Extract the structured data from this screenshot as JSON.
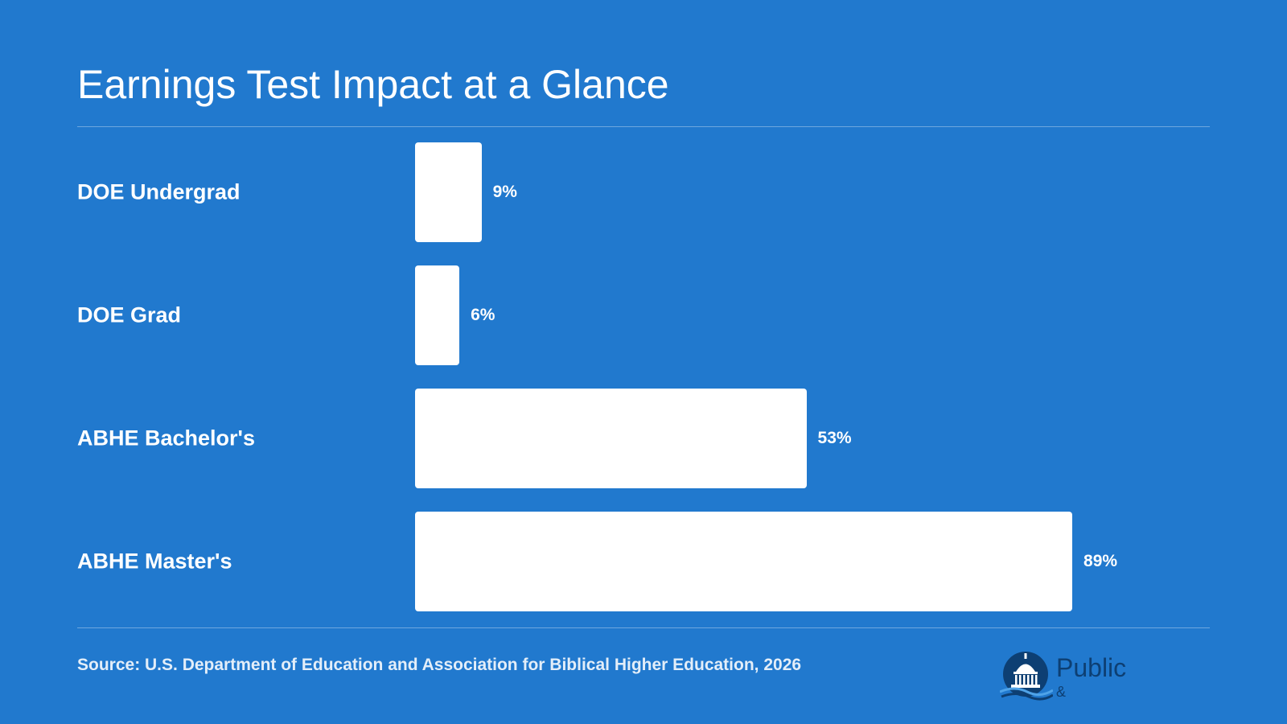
{
  "chart_data": {
    "type": "bar",
    "orientation": "horizontal",
    "title": "Earnings Test Impact at a Glance",
    "categories": [
      "DOE Undergrad",
      "DOE Grad",
      "ABHE Bachelor's",
      "ABHE Master's"
    ],
    "values": [
      9,
      6,
      53,
      89
    ],
    "value_labels": [
      "9%",
      "6%",
      "53%",
      "89%"
    ],
    "xlim": [
      0,
      100
    ],
    "grid": false,
    "bar_color": "#FFFFFF"
  },
  "source": "Source: U.S. Department of Education and Association for Biblical Higher Education, 2026",
  "logo": {
    "word": "Public",
    "sub_left": "",
    "amp": "&",
    "sub_right": "",
    "icon": "capitol-dome-icon"
  },
  "colors": {
    "background": "#2179CE",
    "text": "#FFFFFF",
    "logo_dark": "#0D3F73"
  }
}
